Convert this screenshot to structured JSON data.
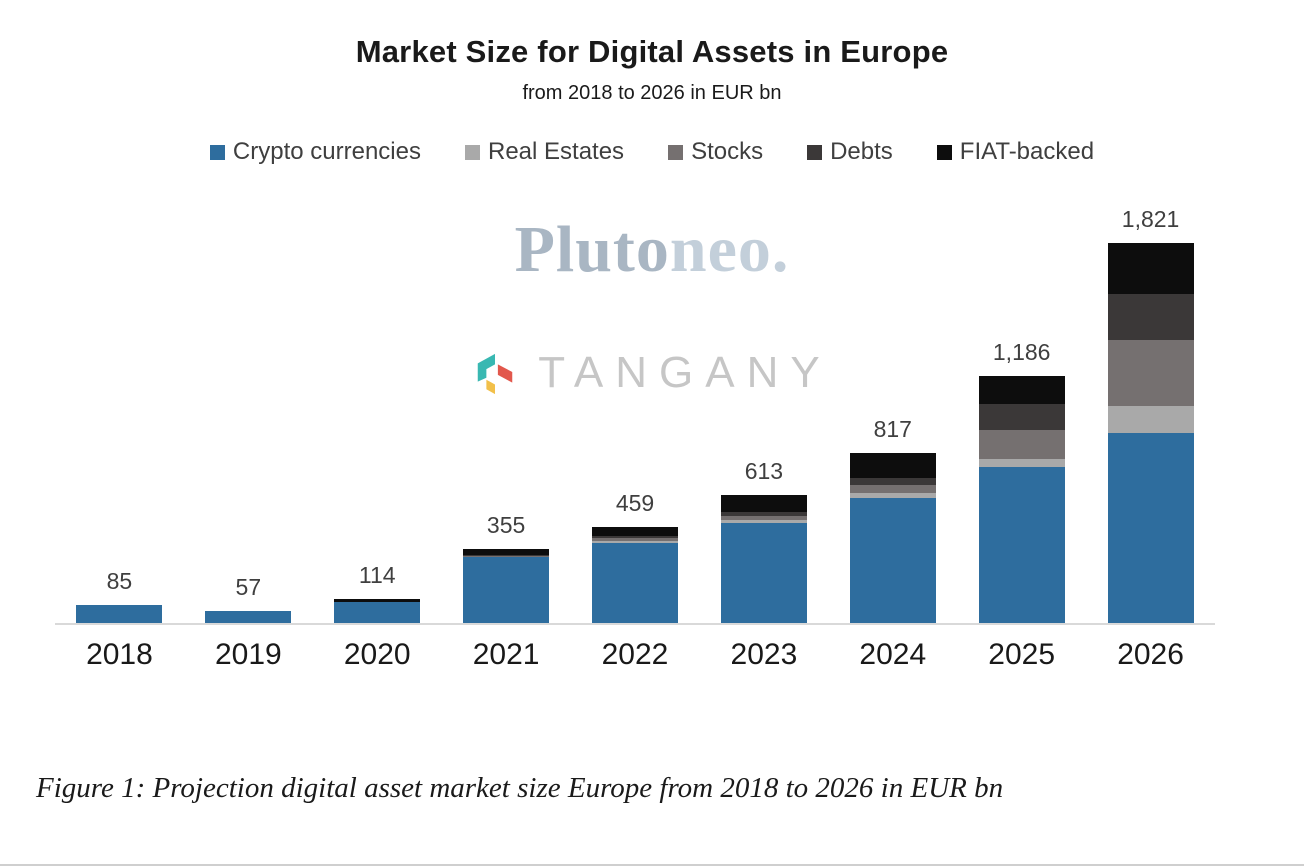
{
  "header": {
    "title": "Market Size for Digital Assets in Europe",
    "subtitle": "from 2018 to 2026 in EUR bn"
  },
  "watermarks": {
    "plutoneo_part1": "Pluto",
    "plutoneo_part2": "neo.",
    "tangany": "TANGANY",
    "tangany_logo_colors": [
      "#39b8b2",
      "#e2574c",
      "#f2c04a"
    ]
  },
  "caption": "Figure 1: Projection digital asset market size Europe from 2018 to 2026 in EUR bn",
  "chart_data": {
    "type": "bar",
    "stacked": true,
    "title": "Market Size for Digital Assets in Europe",
    "subtitle": "from 2018 to 2026 in EUR bn",
    "xlabel": "",
    "ylabel": "",
    "grid": false,
    "legend_position": "top",
    "ylim": [
      0,
      1900
    ],
    "categories": [
      "2018",
      "2019",
      "2020",
      "2021",
      "2022",
      "2023",
      "2024",
      "2025",
      "2026"
    ],
    "totals": [
      85,
      57,
      114,
      355,
      459,
      613,
      817,
      1186,
      1821
    ],
    "totals_labels": [
      "85",
      "57",
      "114",
      "355",
      "459",
      "613",
      "817",
      "1,186",
      "1,821"
    ],
    "series": [
      {
        "name": "Crypto currencies",
        "color": "#2E6D9E",
        "values": [
          85,
          57,
          100,
          315,
          385,
          480,
          600,
          750,
          910
        ]
      },
      {
        "name": "Real Estates",
        "color": "#A9A9A9",
        "values": [
          0,
          0,
          0,
          3,
          10,
          15,
          24,
          36,
          130
        ]
      },
      {
        "name": "Stocks",
        "color": "#757070",
        "values": [
          0,
          0,
          0,
          3,
          14,
          20,
          38,
          140,
          315
        ]
      },
      {
        "name": "Debts",
        "color": "#3B3838",
        "values": [
          0,
          0,
          0,
          4,
          10,
          18,
          35,
          125,
          221
        ]
      },
      {
        "name": "FIAT-backed",
        "color": "#0D0D0D",
        "values": [
          0,
          0,
          14,
          30,
          40,
          80,
          120,
          135,
          245
        ]
      }
    ]
  }
}
